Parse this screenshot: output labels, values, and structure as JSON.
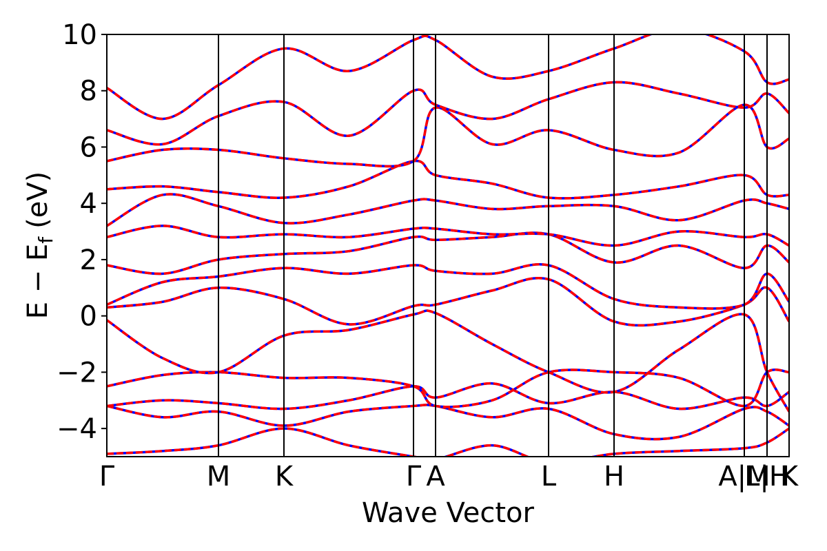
{
  "chart_data": {
    "type": "line",
    "xlabel": "Wave Vector",
    "ylabel": {
      "main": "E − E",
      "sub": "f",
      "unit": "(eV)"
    },
    "xlim": [
      0,
      990
    ],
    "ylim": [
      -5,
      10
    ],
    "xticks": [
      {
        "value": 0,
        "label": "Γ"
      },
      {
        "value": 162,
        "label": "M"
      },
      {
        "value": 257,
        "label": "K"
      },
      {
        "value": 445,
        "label": "Γ"
      },
      {
        "value": 477,
        "label": "A"
      },
      {
        "value": 641,
        "label": "L"
      },
      {
        "value": 736,
        "label": "H"
      },
      {
        "value": 925,
        "label": "A|M"
      },
      {
        "value": 958,
        "label": "L|H"
      },
      {
        "value": 990,
        "label": "K"
      }
    ],
    "yticks": [
      {
        "value": -4,
        "label": "−4"
      },
      {
        "value": -2,
        "label": "−2"
      },
      0,
      2,
      4,
      6,
      8,
      10
    ],
    "underlay_color": "#0000ff",
    "x": [
      0,
      81,
      162,
      257,
      351,
      445,
      477,
      559,
      641,
      736,
      830,
      925,
      958,
      990
    ],
    "series": [
      {
        "color": "#ff0000",
        "values": [
          -4.9,
          -4.8,
          -4.6,
          -4.0,
          -4.6,
          -5.0,
          -5.1,
          -4.6,
          -5.2,
          -4.9,
          -4.8,
          -4.7,
          -4.5,
          -4.0
        ]
      },
      {
        "color": "#ff0000",
        "values": [
          -3.2,
          -3.6,
          -3.4,
          -3.9,
          -3.4,
          -3.2,
          -3.2,
          -3.6,
          -3.3,
          -4.2,
          -4.3,
          -3.3,
          -3.4,
          -3.9
        ]
      },
      {
        "color": "#ff0000",
        "values": [
          -3.2,
          -3.0,
          -3.1,
          -3.3,
          -3.0,
          -2.5,
          -2.9,
          -2.4,
          -3.1,
          -2.7,
          -3.3,
          -2.9,
          -3.2,
          -2.7
        ]
      },
      {
        "color": "#ff0000",
        "values": [
          -2.5,
          -2.1,
          -2.0,
          -2.2,
          -2.2,
          -2.5,
          -3.2,
          -3.0,
          -2.0,
          -2.0,
          -2.2,
          -3.2,
          -2.0,
          -2.0
        ]
      },
      {
        "color": "#ff0000",
        "values": [
          -0.15,
          -1.5,
          -2.0,
          -0.7,
          -0.5,
          0.05,
          0.1,
          -1.0,
          -2.0,
          -2.7,
          -1.2,
          0.05,
          -2.0,
          -3.4
        ]
      },
      {
        "color": "#ff0000",
        "values": [
          0.3,
          0.5,
          1.0,
          0.6,
          -0.3,
          0.35,
          0.4,
          0.9,
          1.3,
          -0.2,
          -0.2,
          0.4,
          1.0,
          -0.2
        ]
      },
      {
        "color": "#ff0000",
        "values": [
          0.4,
          1.2,
          1.4,
          1.7,
          1.5,
          1.8,
          1.6,
          1.5,
          1.8,
          0.6,
          0.3,
          0.4,
          1.5,
          0.5
        ]
      },
      {
        "color": "#ff0000",
        "values": [
          1.8,
          1.5,
          2.0,
          2.2,
          2.3,
          2.8,
          2.7,
          2.8,
          2.9,
          1.9,
          2.5,
          1.7,
          2.5,
          1.9
        ]
      },
      {
        "color": "#ff0000",
        "values": [
          2.8,
          3.2,
          2.8,
          2.9,
          2.8,
          3.1,
          3.1,
          2.9,
          2.9,
          2.5,
          3.0,
          2.8,
          2.9,
          2.5
        ]
      },
      {
        "color": "#ff0000",
        "values": [
          3.2,
          4.3,
          3.9,
          3.3,
          3.6,
          4.1,
          4.1,
          3.8,
          3.9,
          3.9,
          3.4,
          4.1,
          4.0,
          3.8
        ]
      },
      {
        "color": "#ff0000",
        "values": [
          4.5,
          4.6,
          4.4,
          4.2,
          4.6,
          5.5,
          5.0,
          4.7,
          4.2,
          4.3,
          4.6,
          5.0,
          4.3,
          4.3
        ]
      },
      {
        "color": "#ff0000",
        "values": [
          5.5,
          5.9,
          5.9,
          5.6,
          5.4,
          5.5,
          7.4,
          6.1,
          6.6,
          5.9,
          5.8,
          7.5,
          6.0,
          6.3
        ]
      },
      {
        "color": "#ff0000",
        "values": [
          6.6,
          6.1,
          7.1,
          7.6,
          6.4,
          8.0,
          7.5,
          7.0,
          7.7,
          8.3,
          7.9,
          7.4,
          7.9,
          7.2
        ]
      },
      {
        "color": "#ff0000",
        "values": [
          8.1,
          7.0,
          8.2,
          9.5,
          8.7,
          9.8,
          9.8,
          8.5,
          8.7,
          9.5,
          10.2,
          9.4,
          8.3,
          8.4
        ]
      }
    ]
  }
}
